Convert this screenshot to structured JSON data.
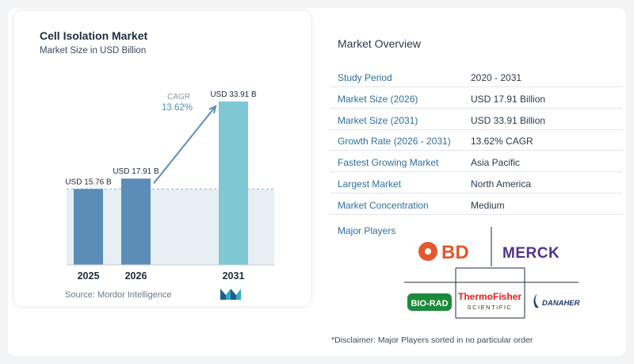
{
  "chart_data": {
    "type": "bar",
    "title": "Cell Isolation Market",
    "subtitle": "Market Size in USD Billion",
    "categories": [
      "2025",
      "2026",
      "2031"
    ],
    "values": [
      15.76,
      17.91,
      33.91
    ],
    "value_labels": [
      "USD 15.76 B",
      "USD 17.91 B",
      "USD 33.91 B"
    ],
    "cagr_label": "CAGR",
    "cagr_value": "13.62%",
    "bar_colors": [
      "#5b8db8",
      "#5b8db8",
      "#7ec8d3"
    ],
    "grid": false,
    "legend": "none"
  },
  "source": "Source:  Mordor Intelligence",
  "overview": {
    "title": "Market Overview",
    "rows": [
      {
        "label": "Study Period",
        "value": "2020 - 2031"
      },
      {
        "label": "Market Size (2026)",
        "value": "USD 17.91 Billion"
      },
      {
        "label": "Market Size (2031)",
        "value": "USD 33.91 Billion"
      },
      {
        "label": "Growth Rate (2026 - 2031)",
        "value": "13.62% CAGR"
      },
      {
        "label": "Fastest Growing Market",
        "value": "Asia Pacific"
      },
      {
        "label": "Largest Market",
        "value": "North America"
      },
      {
        "label": "Market Concentration",
        "value": "Medium"
      }
    ],
    "players_label": "Major Players",
    "players": [
      {
        "name": "BD",
        "color": "#e4572e"
      },
      {
        "name": "MERCK",
        "color": "#503291"
      },
      {
        "name": "BIO-RAD",
        "color": "#1c8a3c"
      },
      {
        "name": "ThermoFisher",
        "sub": "SCIENTIFIC",
        "color": "#e2231a"
      },
      {
        "name": "DANAHER",
        "color": "#1f3c6e"
      }
    ],
    "disclaimer": "*Disclaimer: Major Players sorted in no particular order"
  }
}
